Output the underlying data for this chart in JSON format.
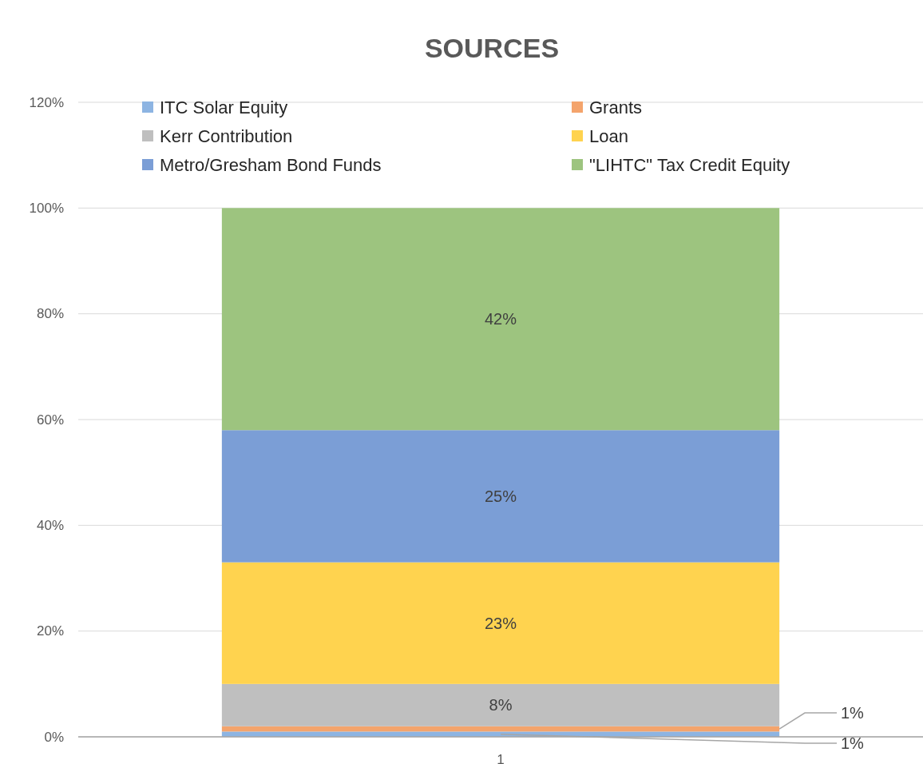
{
  "chart_data": {
    "type": "bar",
    "title": "SOURCES",
    "stacked": true,
    "categories": [
      "1"
    ],
    "series": [
      {
        "name": "ITC Solar Equity",
        "color": "#8db4e2",
        "values": [
          1
        ],
        "value_labels": [
          "1%"
        ]
      },
      {
        "name": "Grants",
        "color": "#f4a46c",
        "values": [
          1
        ],
        "value_labels": [
          "1%"
        ]
      },
      {
        "name": "Kerr Contribution",
        "color": "#bfbfbf",
        "values": [
          8
        ],
        "value_labels": [
          "8%"
        ]
      },
      {
        "name": "Loan",
        "color": "#ffd34f",
        "values": [
          23
        ],
        "value_labels": [
          "23%"
        ]
      },
      {
        "name": "Metro/Gresham Bond Funds",
        "color": "#7b9ed6",
        "values": [
          25
        ],
        "value_labels": [
          "25%"
        ]
      },
      {
        "name": "\"LIHTC\" Tax Credit Equity",
        "color": "#9dc47f",
        "values": [
          42
        ],
        "value_labels": [
          "42%"
        ]
      }
    ],
    "ylim": [
      0,
      120
    ],
    "yticks": [
      {
        "value": 0,
        "label": "0%"
      },
      {
        "value": 20,
        "label": "20%"
      },
      {
        "value": 40,
        "label": "40%"
      },
      {
        "value": 60,
        "label": "60%"
      },
      {
        "value": 80,
        "label": "80%"
      },
      {
        "value": 100,
        "label": "100%"
      },
      {
        "value": 120,
        "label": "120%"
      }
    ],
    "grid": "y",
    "legend": "top"
  }
}
